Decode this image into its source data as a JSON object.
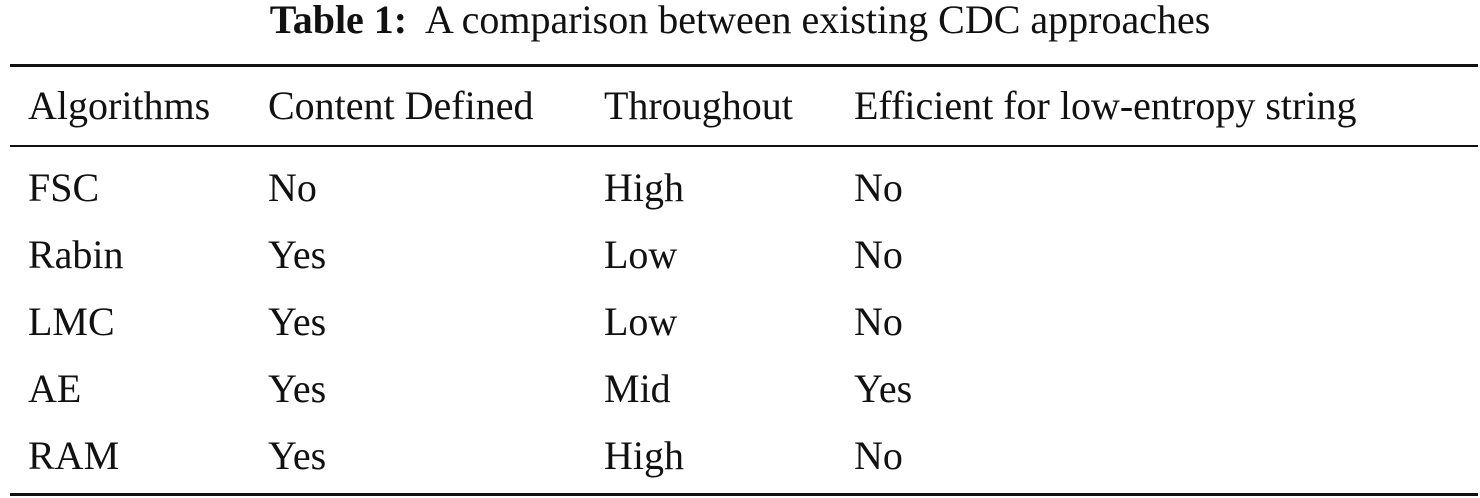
{
  "caption": {
    "label": "Table 1:",
    "text": "A comparison between existing CDC approaches"
  },
  "table": {
    "header": [
      "Algorithms",
      "Content Defined",
      "Throughout",
      "Efficient for low-entropy string"
    ],
    "rows": [
      [
        "FSC",
        "No",
        "High",
        "No"
      ],
      [
        "Rabin",
        "Yes",
        "Low",
        "No"
      ],
      [
        "LMC",
        "Yes",
        "Low",
        "No"
      ],
      [
        "AE",
        "Yes",
        "Mid",
        "Yes"
      ],
      [
        "RAM",
        "Yes",
        "High",
        "No"
      ]
    ]
  }
}
